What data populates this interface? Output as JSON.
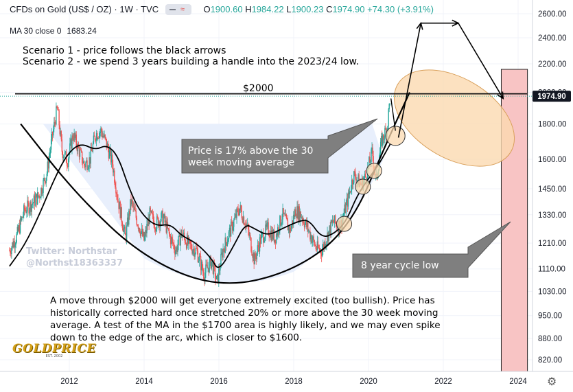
{
  "header": {
    "symbol": "CFDs on Gold (US$ / OZ) · 1W · TVC",
    "open_label": "O",
    "open": "1900.60",
    "high_label": "H",
    "high": "1984.22",
    "low_label": "L",
    "low": "1900.23",
    "close_label": "C",
    "close": "1974.90",
    "change": "+74.30 (+3.91%)",
    "pill_icon": "approx-icon"
  },
  "indicator": {
    "label": "MA 30 close 0",
    "value": "1683.24"
  },
  "annotations": {
    "scenario1": "Scenario 1 - price follows the black arrows",
    "scenario2": "Scenario 2 - we spend 3 years building a handle into the 2023/24 low.",
    "level_label": "$2000",
    "callout_ma": "Price is 17% above the 30 week moving average",
    "callout_ma_line1": "Price is 17% above the 30",
    "callout_ma_line2": "week moving average",
    "callout_cycle": "8 year cycle low",
    "note_line1": "A move through $2000 will get everyone extremely excited (too bullish). Price has",
    "note_line2": "historically corrected hard once stretched 20% or more above the 30 week moving",
    "note_line3": "average. A test of the MA in the $1700 area is highly likely, and we may even spike",
    "note_line4": "down to the edge of the arc, which is closer to $1600.",
    "watermark_line1": "Twitter: Northstar",
    "watermark_line2": "@Northst18363337",
    "logo_text": "GOLDPRICE",
    "logo_sub": "EST. 2002"
  },
  "colors": {
    "up": "#26a69a",
    "down": "#ef5350",
    "ma": "#000000",
    "arc_fill": "#e8effc",
    "cycle_zone": "#f8c4c4",
    "handle_ellipse": "#fbd9b0",
    "callout": "#7f7f7f",
    "price_label_bg": "#131722"
  },
  "chart_data": {
    "type": "candlestick",
    "interval": "1W",
    "price_axis": {
      "scale": "log",
      "ticks": [
        820,
        880,
        950,
        1030,
        1110,
        1210,
        1330,
        1450,
        1600,
        1800,
        2000,
        2200,
        2400,
        2600
      ],
      "tick_labels": [
        "820.00",
        "880.00",
        "950.00",
        "1030.00",
        "1110.00",
        "1210.00",
        "1330.00",
        "1450.00",
        "1600.00",
        "1800.00",
        "2000.00",
        "2200.00",
        "2400.00",
        "2600.00"
      ],
      "last_price": "1974.90"
    },
    "time_axis": {
      "range": [
        2010.4,
        2025.2
      ],
      "ticks": [
        2012,
        2014,
        2016,
        2018,
        2020,
        2022,
        2024
      ],
      "tick_labels": [
        "2012",
        "2014",
        "2016",
        "2018",
        "2020",
        "2022",
        "2024"
      ]
    },
    "price_path": [
      [
        2010.4,
        1180
      ],
      [
        2010.6,
        1240
      ],
      [
        2010.8,
        1350
      ],
      [
        2011.0,
        1380
      ],
      [
        2011.2,
        1420
      ],
      [
        2011.4,
        1530
      ],
      [
        2011.6,
        1800
      ],
      [
        2011.68,
        1900
      ],
      [
        2011.8,
        1650
      ],
      [
        2011.95,
        1590
      ],
      [
        2012.1,
        1740
      ],
      [
        2012.25,
        1650
      ],
      [
        2012.4,
        1570
      ],
      [
        2012.55,
        1600
      ],
      [
        2012.7,
        1740
      ],
      [
        2012.85,
        1760
      ],
      [
        2013.0,
        1680
      ],
      [
        2013.15,
        1580
      ],
      [
        2013.3,
        1400
      ],
      [
        2013.5,
        1230
      ],
      [
        2013.65,
        1390
      ],
      [
        2013.8,
        1310
      ],
      [
        2014.0,
        1220
      ],
      [
        2014.15,
        1330
      ],
      [
        2014.3,
        1290
      ],
      [
        2014.5,
        1320
      ],
      [
        2014.7,
        1230
      ],
      [
        2014.85,
        1180
      ],
      [
        2015.0,
        1250
      ],
      [
        2015.2,
        1200
      ],
      [
        2015.4,
        1180
      ],
      [
        2015.6,
        1090
      ],
      [
        2015.8,
        1140
      ],
      [
        2015.95,
        1060
      ],
      [
        2016.1,
        1180
      ],
      [
        2016.3,
        1260
      ],
      [
        2016.55,
        1360
      ],
      [
        2016.75,
        1280
      ],
      [
        2016.95,
        1140
      ],
      [
        2017.1,
        1220
      ],
      [
        2017.3,
        1270
      ],
      [
        2017.5,
        1230
      ],
      [
        2017.7,
        1330
      ],
      [
        2017.9,
        1260
      ],
      [
        2018.05,
        1350
      ],
      [
        2018.2,
        1330
      ],
      [
        2018.4,
        1260
      ],
      [
        2018.6,
        1190
      ],
      [
        2018.75,
        1180
      ],
      [
        2018.9,
        1240
      ],
      [
        2019.05,
        1300
      ],
      [
        2019.25,
        1280
      ],
      [
        2019.45,
        1400
      ],
      [
        2019.6,
        1520
      ],
      [
        2019.8,
        1470
      ],
      [
        2019.95,
        1520
      ],
      [
        2020.1,
        1640
      ],
      [
        2020.2,
        1480
      ],
      [
        2020.35,
        1700
      ],
      [
        2020.5,
        1780
      ],
      [
        2020.58,
        1974.9
      ]
    ],
    "ma30_path": [
      [
        2010.4,
        1120
      ],
      [
        2010.8,
        1200
      ],
      [
        2011.2,
        1330
      ],
      [
        2011.6,
        1500
      ],
      [
        2011.95,
        1630
      ],
      [
        2012.3,
        1690
      ],
      [
        2012.7,
        1650
      ],
      [
        2013.0,
        1680
      ],
      [
        2013.3,
        1620
      ],
      [
        2013.6,
        1450
      ],
      [
        2013.9,
        1340
      ],
      [
        2014.3,
        1280
      ],
      [
        2014.7,
        1290
      ],
      [
        2015.0,
        1240
      ],
      [
        2015.4,
        1210
      ],
      [
        2015.8,
        1150
      ],
      [
        2016.0,
        1100
      ],
      [
        2016.4,
        1200
      ],
      [
        2016.7,
        1290
      ],
      [
        2016.95,
        1270
      ],
      [
        2017.3,
        1240
      ],
      [
        2017.7,
        1270
      ],
      [
        2018.1,
        1300
      ],
      [
        2018.4,
        1310
      ],
      [
        2018.75,
        1230
      ],
      [
        2019.1,
        1250
      ],
      [
        2019.4,
        1300
      ],
      [
        2019.7,
        1420
      ],
      [
        2020.0,
        1500
      ],
      [
        2020.3,
        1580
      ],
      [
        2020.58,
        1683.24
      ]
    ],
    "horizontal_level": 2000,
    "cycle_low_zone": [
      2023.55,
      2024.25
    ],
    "cup_arc": [
      [
        2010.7,
        1800
      ],
      [
        2012.2,
        1420
      ],
      [
        2014,
        1150
      ],
      [
        2016,
        1040
      ],
      [
        2018,
        1100
      ],
      [
        2019.5,
        1270
      ],
      [
        2020.5,
        1700
      ],
      [
        2021.1,
        2000
      ]
    ],
    "scenario1_arrows": [
      [
        [
          2020.8,
          1720
        ],
        [
          2021.4,
          2520
        ]
      ],
      [
        [
          2021.4,
          2520
        ],
        [
          2022.4,
          2520
        ]
      ],
      [
        [
          2022.4,
          2520
        ],
        [
          2023.6,
          1960
        ]
      ]
    ],
    "touch_circles": [
      [
        2019.35,
        1290
      ],
      [
        2019.85,
        1460
      ],
      [
        2020.15,
        1540
      ],
      [
        2020.72,
        1730
      ]
    ],
    "handle_ellipse": {
      "center": [
        2022.4,
        1940
      ],
      "note": "Scenario 2 handle"
    }
  }
}
